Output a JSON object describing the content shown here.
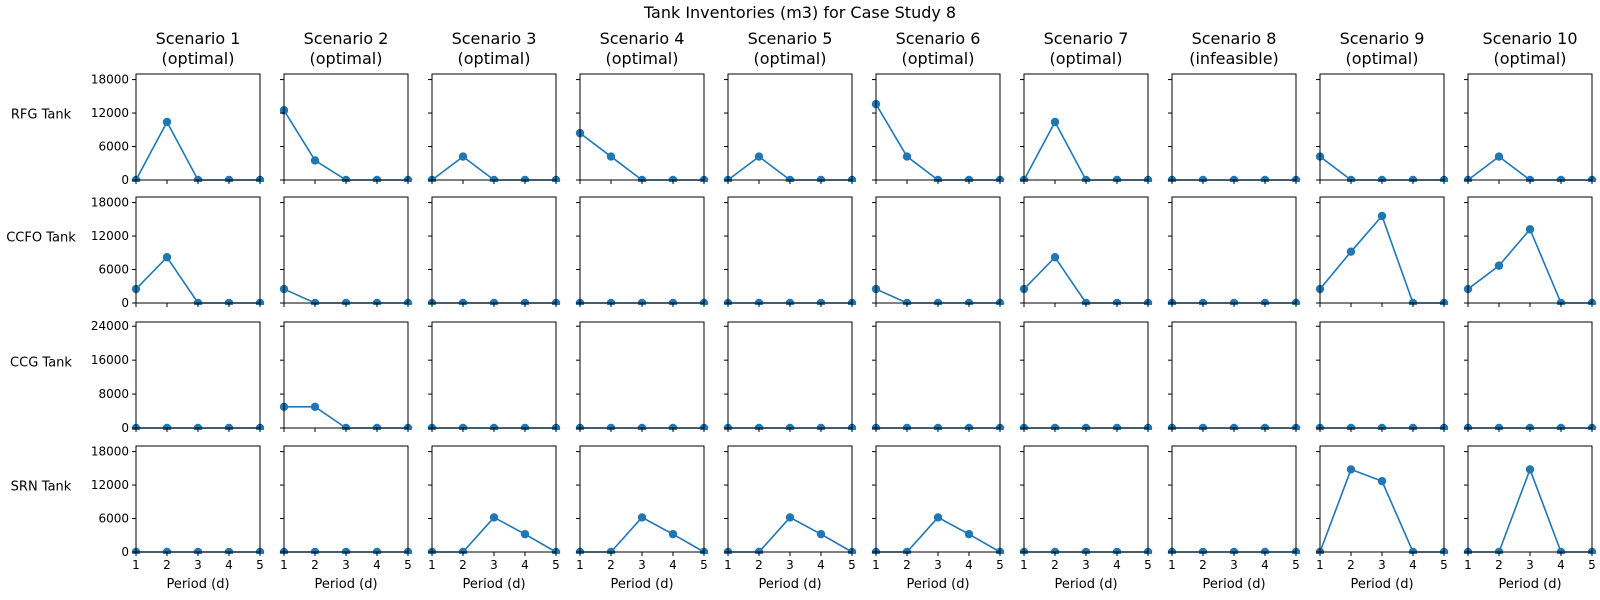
{
  "title": "Tank Inventories (m3) for Case Study 8",
  "xlabel": "Period (d)",
  "colors": {
    "series": "#1f77b4",
    "axes": "#000000",
    "background": "#ffffff"
  },
  "scenarios": [
    {
      "name": "Scenario 1",
      "status": "(optimal)"
    },
    {
      "name": "Scenario 2",
      "status": "(optimal)"
    },
    {
      "name": "Scenario 3",
      "status": "(optimal)"
    },
    {
      "name": "Scenario 4",
      "status": "(optimal)"
    },
    {
      "name": "Scenario 5",
      "status": "(optimal)"
    },
    {
      "name": "Scenario 6",
      "status": "(optimal)"
    },
    {
      "name": "Scenario 7",
      "status": "(optimal)"
    },
    {
      "name": "Scenario 8",
      "status": "(infeasible)"
    },
    {
      "name": "Scenario 9",
      "status": "(optimal)"
    },
    {
      "name": "Scenario 10",
      "status": "(optimal)"
    }
  ],
  "chart_data": {
    "type": "line",
    "x": [
      1,
      2,
      3,
      4,
      5
    ],
    "xticks": [
      1,
      2,
      3,
      4,
      5
    ],
    "xlim": [
      1,
      5
    ],
    "markers": true,
    "grid": false,
    "rows": [
      {
        "label": "RFG Tank",
        "ylim": [
          0,
          19000
        ],
        "yticks": [
          0,
          6000,
          12000,
          18000
        ],
        "series": [
          [
            0,
            10400,
            0,
            0,
            0
          ],
          [
            12500,
            3500,
            0,
            0,
            0
          ],
          [
            0,
            4200,
            0,
            0,
            0
          ],
          [
            8400,
            4200,
            0,
            0,
            0
          ],
          [
            0,
            4200,
            0,
            0,
            0
          ],
          [
            13600,
            4200,
            0,
            0,
            0
          ],
          [
            0,
            10400,
            0,
            0,
            0
          ],
          [
            0,
            0,
            0,
            0,
            0
          ],
          [
            4200,
            0,
            0,
            0,
            0
          ],
          [
            0,
            4200,
            0,
            0,
            0
          ]
        ]
      },
      {
        "label": "CCFO Tank",
        "ylim": [
          0,
          19000
        ],
        "yticks": [
          0,
          6000,
          12000,
          18000
        ],
        "series": [
          [
            2500,
            8200,
            0,
            0,
            0
          ],
          [
            2500,
            0,
            0,
            0,
            0
          ],
          [
            0,
            0,
            0,
            0,
            0
          ],
          [
            0,
            0,
            0,
            0,
            0
          ],
          [
            0,
            0,
            0,
            0,
            0
          ],
          [
            2500,
            0,
            0,
            0,
            0
          ],
          [
            2500,
            8200,
            0,
            0,
            0
          ],
          [
            0,
            0,
            0,
            0,
            0
          ],
          [
            2500,
            9200,
            15600,
            0,
            0
          ],
          [
            2500,
            6700,
            13200,
            0,
            0
          ]
        ]
      },
      {
        "label": "CCG Tank",
        "ylim": [
          0,
          25000
        ],
        "yticks": [
          0,
          8000,
          16000,
          24000
        ],
        "series": [
          [
            0,
            0,
            0,
            0,
            0
          ],
          [
            5000,
            5000,
            0,
            0,
            0
          ],
          [
            0,
            0,
            0,
            0,
            0
          ],
          [
            0,
            0,
            0,
            0,
            0
          ],
          [
            0,
            0,
            0,
            0,
            0
          ],
          [
            0,
            0,
            0,
            0,
            0
          ],
          [
            0,
            0,
            0,
            0,
            0
          ],
          [
            0,
            0,
            0,
            0,
            0
          ],
          [
            0,
            0,
            0,
            0,
            0
          ],
          [
            0,
            0,
            0,
            0,
            0
          ]
        ]
      },
      {
        "label": "SRN Tank",
        "ylim": [
          0,
          19000
        ],
        "yticks": [
          0,
          6000,
          12000,
          18000
        ],
        "series": [
          [
            0,
            0,
            0,
            0,
            0
          ],
          [
            0,
            0,
            0,
            0,
            0
          ],
          [
            0,
            0,
            6200,
            3200,
            0
          ],
          [
            0,
            0,
            6200,
            3200,
            0
          ],
          [
            0,
            0,
            6200,
            3200,
            0
          ],
          [
            0,
            0,
            6200,
            3200,
            0
          ],
          [
            0,
            0,
            0,
            0,
            0
          ],
          [
            0,
            0,
            0,
            0,
            0
          ],
          [
            0,
            14800,
            12700,
            0,
            0
          ],
          [
            0,
            0,
            14800,
            0,
            0
          ]
        ]
      }
    ]
  }
}
